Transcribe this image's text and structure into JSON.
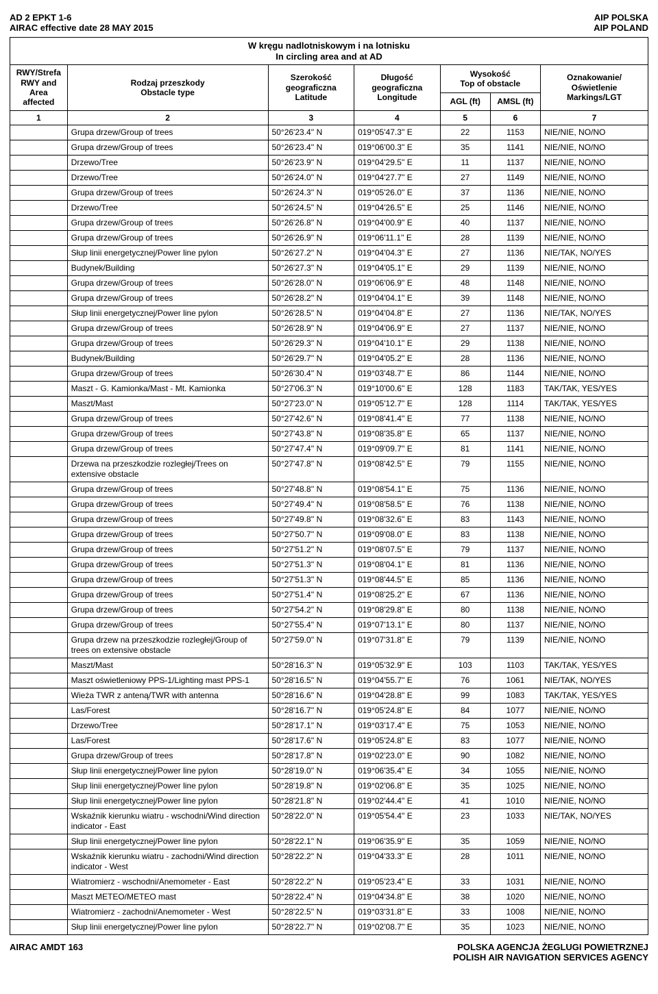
{
  "header": {
    "top_left_1": "AD 2 EPKT 1-6",
    "top_left_2": "AIRAC effective date  28 MAY 2015",
    "top_right_1": "AIP POLSKA",
    "top_right_2": "AIP POLAND"
  },
  "table_caption_pl": "W kręgu nadlotniskowym i na lotnisku",
  "table_caption_en": "In circling area and at AD",
  "columns": {
    "rwy_pl": "RWY/Strefa",
    "rwy_en1": "RWY and",
    "rwy_en2": "Area",
    "rwy_en3": "affected",
    "obstacle_pl": "Rodzaj przeszkody",
    "obstacle_en": "Obstacle type",
    "lat_pl": "Szerokość geograficzna",
    "lat_en": "Latitude",
    "lon_pl": "Długość geograficzna",
    "lon_en": "Longitude",
    "top_pl": "Wysokość",
    "top_en": "Top of obstacle",
    "agl": "AGL (ft)",
    "amsl": "AMSL (ft)",
    "mark_pl": "Oznakowanie/ Oświetlenie",
    "mark_en": "Markings/LGT",
    "n1": "1",
    "n2": "2",
    "n3": "3",
    "n4": "4",
    "n5": "5",
    "n6": "6",
    "n7": "7"
  },
  "rows": [
    {
      "obs": "Grupa drzew/Group of trees",
      "lat": "50°26'23.4'' N",
      "lon": "019°05'47.3'' E",
      "agl": "22",
      "amsl": "1153",
      "mark": "NIE/NIE, NO/NO"
    },
    {
      "obs": "Grupa drzew/Group of trees",
      "lat": "50°26'23.4'' N",
      "lon": "019°06'00.3'' E",
      "agl": "35",
      "amsl": "1141",
      "mark": "NIE/NIE, NO/NO"
    },
    {
      "obs": "Drzewo/Tree",
      "lat": "50°26'23.9'' N",
      "lon": "019°04'29.5'' E",
      "agl": "11",
      "amsl": "1137",
      "mark": "NIE/NIE, NO/NO"
    },
    {
      "obs": "Drzewo/Tree",
      "lat": "50°26'24.0'' N",
      "lon": "019°04'27.7'' E",
      "agl": "27",
      "amsl": "1149",
      "mark": "NIE/NIE, NO/NO"
    },
    {
      "obs": "Grupa drzew/Group of trees",
      "lat": "50°26'24.3'' N",
      "lon": "019°05'26.0'' E",
      "agl": "37",
      "amsl": "1136",
      "mark": "NIE/NIE, NO/NO"
    },
    {
      "obs": "Drzewo/Tree",
      "lat": "50°26'24.5'' N",
      "lon": "019°04'26.5'' E",
      "agl": "25",
      "amsl": "1146",
      "mark": "NIE/NIE, NO/NO"
    },
    {
      "obs": "Grupa drzew/Group of trees",
      "lat": "50°26'26.8'' N",
      "lon": "019°04'00.9'' E",
      "agl": "40",
      "amsl": "1137",
      "mark": "NIE/NIE, NO/NO"
    },
    {
      "obs": "Grupa drzew/Group of trees",
      "lat": "50°26'26.9'' N",
      "lon": "019°06'11.1'' E",
      "agl": "28",
      "amsl": "1139",
      "mark": "NIE/NIE, NO/NO"
    },
    {
      "obs": "Słup linii energetycznej/Power line pylon",
      "lat": "50°26'27.2'' N",
      "lon": "019°04'04.3'' E",
      "agl": "27",
      "amsl": "1136",
      "mark": "NIE/TAK, NO/YES"
    },
    {
      "obs": "Budynek/Building",
      "lat": "50°26'27.3'' N",
      "lon": "019°04'05.1'' E",
      "agl": "29",
      "amsl": "1139",
      "mark": "NIE/NIE, NO/NO"
    },
    {
      "obs": "Grupa drzew/Group of trees",
      "lat": "50°26'28.0'' N",
      "lon": "019°06'06.9'' E",
      "agl": "48",
      "amsl": "1148",
      "mark": "NIE/NIE, NO/NO"
    },
    {
      "obs": "Grupa drzew/Group of trees",
      "lat": "50°26'28.2'' N",
      "lon": "019°04'04.1'' E",
      "agl": "39",
      "amsl": "1148",
      "mark": "NIE/NIE, NO/NO"
    },
    {
      "obs": "Słup linii energetycznej/Power line pylon",
      "lat": "50°26'28.5'' N",
      "lon": "019°04'04.8'' E",
      "agl": "27",
      "amsl": "1136",
      "mark": "NIE/TAK, NO/YES"
    },
    {
      "obs": "Grupa drzew/Group of trees",
      "lat": "50°26'28.9'' N",
      "lon": "019°04'06.9'' E",
      "agl": "27",
      "amsl": "1137",
      "mark": "NIE/NIE, NO/NO"
    },
    {
      "obs": "Grupa drzew/Group of trees",
      "lat": "50°26'29.3'' N",
      "lon": "019°04'10.1'' E",
      "agl": "29",
      "amsl": "1138",
      "mark": "NIE/NIE, NO/NO"
    },
    {
      "obs": "Budynek/Building",
      "lat": "50°26'29.7'' N",
      "lon": "019°04'05.2'' E",
      "agl": "28",
      "amsl": "1136",
      "mark": "NIE/NIE, NO/NO"
    },
    {
      "obs": "Grupa drzew/Group of trees",
      "lat": "50°26'30.4'' N",
      "lon": "019°03'48.7'' E",
      "agl": "86",
      "amsl": "1144",
      "mark": "NIE/NIE, NO/NO"
    },
    {
      "obs": "Maszt - G. Kamionka/Mast - Mt. Kamionka",
      "lat": "50°27'06.3'' N",
      "lon": "019°10'00.6'' E",
      "agl": "128",
      "amsl": "1183",
      "mark": "TAK/TAK, YES/YES"
    },
    {
      "obs": "Maszt/Mast",
      "lat": "50°27'23.0'' N",
      "lon": "019°05'12.7'' E",
      "agl": "128",
      "amsl": "1114",
      "mark": "TAK/TAK, YES/YES"
    },
    {
      "obs": "Grupa drzew/Group of trees",
      "lat": "50°27'42.6'' N",
      "lon": "019°08'41.4'' E",
      "agl": "77",
      "amsl": "1138",
      "mark": "NIE/NIE, NO/NO"
    },
    {
      "obs": "Grupa drzew/Group of trees",
      "lat": "50°27'43.8'' N",
      "lon": "019°08'35.8'' E",
      "agl": "65",
      "amsl": "1137",
      "mark": "NIE/NIE, NO/NO"
    },
    {
      "obs": "Grupa drzew/Group of trees",
      "lat": "50°27'47.4'' N",
      "lon": "019°09'09.7'' E",
      "agl": "81",
      "amsl": "1141",
      "mark": "NIE/NIE, NO/NO"
    },
    {
      "obs": "Drzewa na przeszkodzie rozległej/Trees on extensive obstacle",
      "lat": "50°27'47.8'' N",
      "lon": "019°08'42.5'' E",
      "agl": "79",
      "amsl": "1155",
      "mark": "NIE/NIE, NO/NO"
    },
    {
      "obs": "Grupa drzew/Group of trees",
      "lat": "50°27'48.8'' N",
      "lon": "019°08'54.1'' E",
      "agl": "75",
      "amsl": "1136",
      "mark": "NIE/NIE, NO/NO"
    },
    {
      "obs": "Grupa drzew/Group of trees",
      "lat": "50°27'49.4'' N",
      "lon": "019°08'58.5'' E",
      "agl": "76",
      "amsl": "1138",
      "mark": "NIE/NIE, NO/NO"
    },
    {
      "obs": "Grupa drzew/Group of trees",
      "lat": "50°27'49.8'' N",
      "lon": "019°08'32.6'' E",
      "agl": "83",
      "amsl": "1143",
      "mark": "NIE/NIE, NO/NO"
    },
    {
      "obs": "Grupa drzew/Group of trees",
      "lat": "50°27'50.7'' N",
      "lon": "019°09'08.0'' E",
      "agl": "83",
      "amsl": "1138",
      "mark": "NIE/NIE, NO/NO"
    },
    {
      "obs": "Grupa drzew/Group of trees",
      "lat": "50°27'51.2'' N",
      "lon": "019°08'07.5'' E",
      "agl": "79",
      "amsl": "1137",
      "mark": "NIE/NIE, NO/NO"
    },
    {
      "obs": "Grupa drzew/Group of trees",
      "lat": "50°27'51.3'' N",
      "lon": "019°08'04.1'' E",
      "agl": "81",
      "amsl": "1136",
      "mark": "NIE/NIE, NO/NO"
    },
    {
      "obs": "Grupa drzew/Group of trees",
      "lat": "50°27'51.3'' N",
      "lon": "019°08'44.5'' E",
      "agl": "85",
      "amsl": "1136",
      "mark": "NIE/NIE, NO/NO"
    },
    {
      "obs": "Grupa drzew/Group of trees",
      "lat": "50°27'51.4'' N",
      "lon": "019°08'25.2'' E",
      "agl": "67",
      "amsl": "1136",
      "mark": "NIE/NIE, NO/NO"
    },
    {
      "obs": "Grupa drzew/Group of trees",
      "lat": "50°27'54.2'' N",
      "lon": "019°08'29.8'' E",
      "agl": "80",
      "amsl": "1138",
      "mark": "NIE/NIE, NO/NO"
    },
    {
      "obs": "Grupa drzew/Group of trees",
      "lat": "50°27'55.4'' N",
      "lon": "019°07'13.1'' E",
      "agl": "80",
      "amsl": "1137",
      "mark": "NIE/NIE, NO/NO"
    },
    {
      "obs": "Grupa drzew na przeszkodzie rozległej/Group of trees on extensive obstacle",
      "lat": "50°27'59.0'' N",
      "lon": "019°07'31.8'' E",
      "agl": "79",
      "amsl": "1139",
      "mark": "NIE/NIE, NO/NO"
    },
    {
      "obs": "Maszt/Mast",
      "lat": "50°28'16.3'' N",
      "lon": "019°05'32.9'' E",
      "agl": "103",
      "amsl": "1103",
      "mark": "TAK/TAK, YES/YES"
    },
    {
      "obs": "Maszt oświetleniowy PPS-1/Lighting mast PPS-1",
      "lat": "50°28'16.5'' N",
      "lon": "019°04'55.7'' E",
      "agl": "76",
      "amsl": "1061",
      "mark": "NIE/TAK, NO/YES"
    },
    {
      "obs": "Wieża TWR z anteną/TWR with antenna",
      "lat": "50°28'16.6'' N",
      "lon": "019°04'28.8'' E",
      "agl": "99",
      "amsl": "1083",
      "mark": "TAK/TAK, YES/YES"
    },
    {
      "obs": "Las/Forest",
      "lat": "50°28'16.7'' N",
      "lon": "019°05'24.8'' E",
      "agl": "84",
      "amsl": "1077",
      "mark": "NIE/NIE, NO/NO"
    },
    {
      "obs": "Drzewo/Tree",
      "lat": "50°28'17.1'' N",
      "lon": "019°03'17.4'' E",
      "agl": "75",
      "amsl": "1053",
      "mark": "NIE/NIE, NO/NO"
    },
    {
      "obs": "Las/Forest",
      "lat": "50°28'17.6'' N",
      "lon": "019°05'24.8'' E",
      "agl": "83",
      "amsl": "1077",
      "mark": "NIE/NIE, NO/NO"
    },
    {
      "obs": "Grupa drzew/Group of trees",
      "lat": "50°28'17.8'' N",
      "lon": "019°02'23.0'' E",
      "agl": "90",
      "amsl": "1082",
      "mark": "NIE/NIE, NO/NO"
    },
    {
      "obs": "Słup linii energetycznej/Power line pylon",
      "lat": "50°28'19.0'' N",
      "lon": "019°06'35.4'' E",
      "agl": "34",
      "amsl": "1055",
      "mark": "NIE/NIE, NO/NO"
    },
    {
      "obs": "Słup linii energetycznej/Power line pylon",
      "lat": "50°28'19.8'' N",
      "lon": "019°02'06.8'' E",
      "agl": "35",
      "amsl": "1025",
      "mark": "NIE/NIE, NO/NO"
    },
    {
      "obs": "Słup linii energetycznej/Power line pylon",
      "lat": "50°28'21.8'' N",
      "lon": "019°02'44.4'' E",
      "agl": "41",
      "amsl": "1010",
      "mark": "NIE/NIE, NO/NO"
    },
    {
      "obs": "Wskaźnik kierunku wiatru - wschodni/Wind direction indicator - East",
      "lat": "50°28'22.0'' N",
      "lon": "019°05'54.4'' E",
      "agl": "23",
      "amsl": "1033",
      "mark": "NIE/TAK, NO/YES"
    },
    {
      "obs": "Słup linii energetycznej/Power line pylon",
      "lat": "50°28'22.1'' N",
      "lon": "019°06'35.9'' E",
      "agl": "35",
      "amsl": "1059",
      "mark": "NIE/NIE, NO/NO"
    },
    {
      "obs": "Wskaźnik kierunku wiatru - zachodni/Wind direction indicator - West",
      "lat": "50°28'22.2'' N",
      "lon": "019°04'33.3'' E",
      "agl": "28",
      "amsl": "1011",
      "mark": "NIE/NIE, NO/NO"
    },
    {
      "obs": "Wiatromierz - wschodni/Anemometer - East",
      "lat": "50°28'22.2'' N",
      "lon": "019°05'23.4'' E",
      "agl": "33",
      "amsl": "1031",
      "mark": "NIE/NIE, NO/NO"
    },
    {
      "obs": "Maszt METEO/METEO mast",
      "lat": "50°28'22.4'' N",
      "lon": "019°04'34.8'' E",
      "agl": "38",
      "amsl": "1020",
      "mark": "NIE/NIE, NO/NO"
    },
    {
      "obs": "Wiatromierz - zachodni/Anemometer - West",
      "lat": "50°28'22.5'' N",
      "lon": "019°03'31.8'' E",
      "agl": "33",
      "amsl": "1008",
      "mark": "NIE/NIE, NO/NO"
    },
    {
      "obs": "Słup linii energetycznej/Power line pylon",
      "lat": "50°28'22.7'' N",
      "lon": "019°02'08.7'' E",
      "agl": "35",
      "amsl": "1023",
      "mark": "NIE/NIE, NO/NO"
    }
  ],
  "footer": {
    "left": "AIRAC AMDT   163",
    "right_1": "POLSKA AGENCJA ŻEGLUGI POWIETRZNEJ",
    "right_2": "POLISH AIR NAVIGATION SERVICES AGENCY"
  }
}
